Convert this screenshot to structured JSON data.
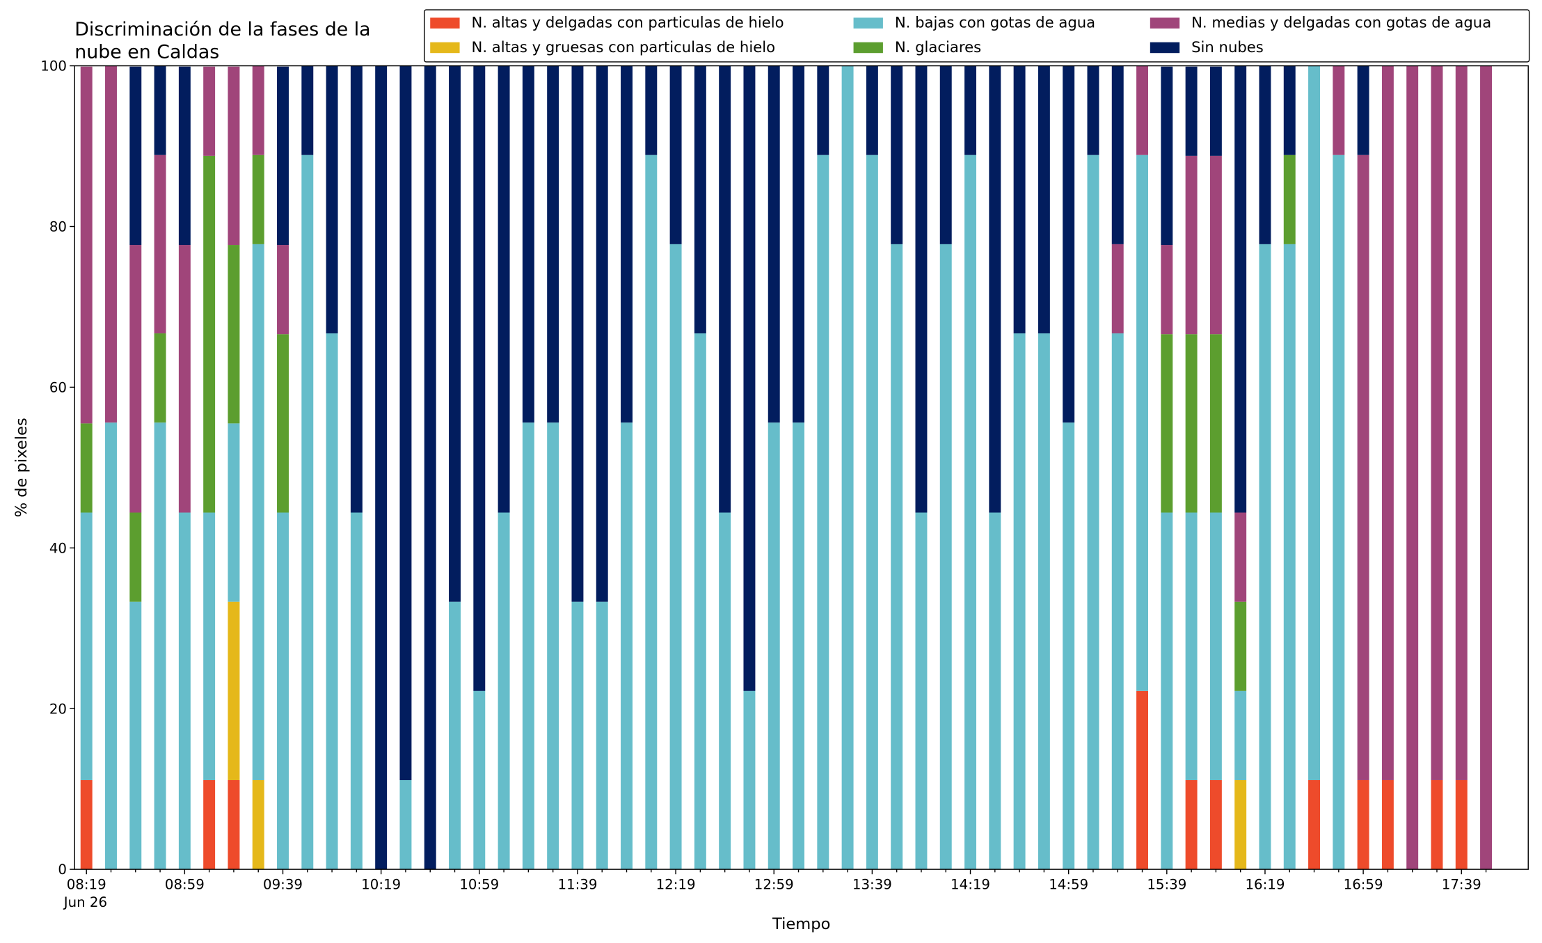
{
  "chart_data": {
    "type": "stacked_bar",
    "title": [
      "Discriminación de la fases de la",
      "nube en Caldas"
    ],
    "xlabel": "Tiempo",
    "ylabel": "% de pixeles",
    "x_date_label": "Jun 26",
    "categories": [
      "08:19",
      null,
      null,
      null,
      "08:59",
      null,
      null,
      null,
      "09:39",
      null,
      null,
      null,
      "10:19",
      null,
      null,
      null,
      "10:59",
      null,
      null,
      null,
      "11:39",
      null,
      null,
      null,
      "12:19",
      null,
      null,
      null,
      "12:59",
      null,
      null,
      null,
      "13:39",
      null,
      null,
      null,
      "14:19",
      null,
      null,
      null,
      "14:59",
      null,
      null,
      null,
      "15:39",
      null,
      null,
      null,
      "16:19",
      null,
      null,
      null,
      "16:59",
      null,
      null,
      null,
      "17:39",
      null
    ],
    "ylim": [
      0,
      100
    ],
    "yticks": [
      0,
      20,
      40,
      60,
      80,
      100
    ],
    "grid": false,
    "legend": "top",
    "legend_columns": 3,
    "series": [
      {
        "name": "N. altas y delgadas con particulas de hielo",
        "color": "#ee4b2b",
        "values": [
          11.1,
          0,
          0,
          0,
          0,
          11.1,
          11.1,
          0,
          0,
          0,
          0,
          0,
          0,
          0,
          0,
          0,
          0,
          0,
          0,
          0,
          0,
          0,
          0,
          0,
          0,
          0,
          0,
          0,
          0,
          0,
          0,
          0,
          0,
          0,
          0,
          0,
          0,
          0,
          0,
          0,
          0,
          0,
          0,
          22.2,
          0,
          11.1,
          11.1,
          0,
          0,
          0,
          11.1,
          0,
          11.1,
          11.1,
          0,
          11.1,
          11.1,
          0
        ]
      },
      {
        "name": "N. altas y gruesas con particulas de hielo",
        "color": "#e5b81a",
        "values": [
          0,
          0,
          0,
          0,
          0,
          0,
          22.2,
          11.1,
          0,
          0,
          0,
          0,
          0,
          0,
          0,
          0,
          0,
          0,
          0,
          0,
          0,
          0,
          0,
          0,
          0,
          0,
          0,
          0,
          0,
          0,
          0,
          0,
          0,
          0,
          0,
          0,
          0,
          0,
          0,
          0,
          0,
          0,
          0,
          0,
          0,
          0,
          0,
          11.1,
          0,
          0,
          0,
          0,
          0,
          0,
          0,
          0,
          0,
          0
        ]
      },
      {
        "name": "N. bajas con gotas de agua",
        "color": "#66bdca",
        "values": [
          33.3,
          55.6,
          33.3,
          55.6,
          44.4,
          33.3,
          22.2,
          66.7,
          44.4,
          88.9,
          66.7,
          44.4,
          0,
          11.1,
          0,
          33.3,
          22.2,
          44.4,
          55.6,
          55.6,
          33.3,
          33.3,
          55.6,
          88.9,
          77.8,
          66.7,
          44.4,
          22.2,
          55.6,
          55.6,
          88.9,
          100,
          88.9,
          77.8,
          44.4,
          77.8,
          88.9,
          44.4,
          66.7,
          66.7,
          55.6,
          88.9,
          66.7,
          66.7,
          44.4,
          33.3,
          33.3,
          11.1,
          77.8,
          77.8,
          88.9,
          88.9,
          0,
          0,
          0,
          0,
          0,
          0
        ]
      },
      {
        "name": "N. glaciares",
        "color": "#5c9e2f",
        "values": [
          11.1,
          0,
          11.1,
          11.1,
          0,
          44.4,
          22.2,
          11.1,
          22.2,
          0,
          0,
          0,
          0,
          0,
          0,
          0,
          0,
          0,
          0,
          0,
          0,
          0,
          0,
          0,
          0,
          0,
          0,
          0,
          0,
          0,
          0,
          0,
          0,
          0,
          0,
          0,
          0,
          0,
          0,
          0,
          0,
          0,
          0,
          0,
          22.2,
          22.2,
          22.2,
          11.1,
          0,
          11.1,
          0,
          0,
          0,
          0,
          0,
          0,
          0,
          0
        ]
      },
      {
        "name": "N. medias y delgadas con gotas de agua",
        "color": "#a0457a",
        "values": [
          44.4,
          44.4,
          33.3,
          22.2,
          33.3,
          11.1,
          22.2,
          11.1,
          11.1,
          0,
          0,
          0,
          0,
          0,
          0,
          0,
          0,
          0,
          0,
          0,
          0,
          0,
          0,
          0,
          0,
          0,
          0,
          0,
          0,
          0,
          0,
          0,
          0,
          0,
          0,
          0,
          0,
          0,
          0,
          0,
          0,
          0,
          11.1,
          11.1,
          11.1,
          22.2,
          22.2,
          11.1,
          0,
          0,
          0,
          11.1,
          77.8,
          88.9,
          100,
          88.9,
          88.9,
          100
        ]
      },
      {
        "name": "Sin nubes",
        "color": "#021d5e",
        "values": [
          0,
          0,
          22.2,
          11.1,
          22.2,
          0,
          0,
          0,
          22.2,
          11.1,
          33.3,
          55.6,
          100,
          88.9,
          100,
          66.7,
          77.8,
          55.6,
          44.4,
          44.4,
          66.7,
          66.7,
          44.4,
          11.1,
          22.2,
          33.3,
          55.6,
          77.8,
          44.4,
          44.4,
          11.1,
          0,
          11.1,
          22.2,
          55.6,
          22.2,
          11.1,
          55.6,
          33.3,
          33.3,
          44.4,
          11.1,
          22.2,
          0,
          22.2,
          11.1,
          11.1,
          55.6,
          22.2,
          11.1,
          0,
          0,
          11.1,
          0,
          0,
          0,
          0,
          0
        ]
      }
    ]
  }
}
